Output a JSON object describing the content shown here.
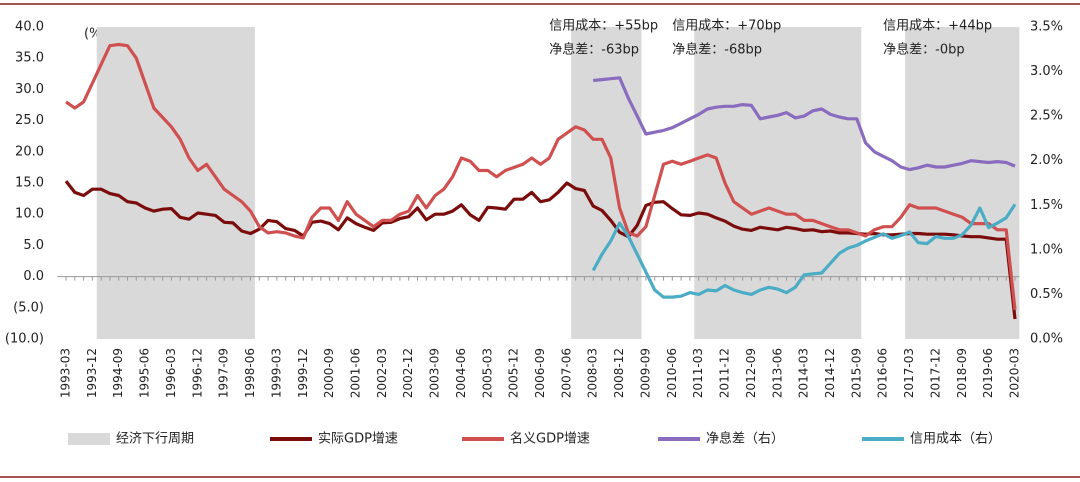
{
  "chart_data": {
    "type": "line",
    "y_unit_label": "(%)",
    "categories": [
      "1993-03",
      null,
      null,
      "1993-12",
      null,
      null,
      "1994-09",
      null,
      null,
      "1995-06",
      null,
      null,
      "1996-03",
      null,
      null,
      "1996-12",
      null,
      null,
      "1997-09",
      null,
      null,
      "1998-06",
      null,
      null,
      "1999-03",
      null,
      null,
      "1999-12",
      null,
      null,
      "2000-09",
      null,
      null,
      "2001-06",
      null,
      null,
      "2002-03",
      null,
      null,
      "2002-12",
      null,
      null,
      "2003-09",
      null,
      null,
      "2004-06",
      null,
      null,
      "2005-03",
      null,
      null,
      "2005-12",
      null,
      null,
      "2006-09",
      null,
      null,
      "2007-06",
      null,
      null,
      "2008-03",
      null,
      null,
      "2008-12",
      null,
      null,
      "2009-09",
      null,
      null,
      "2010-06",
      null,
      null,
      "2011-03",
      null,
      null,
      "2011-12",
      null,
      null,
      "2012-09",
      null,
      null,
      "2013-06",
      null,
      null,
      "2014-03",
      null,
      null,
      "2014-12",
      null,
      null,
      "2015-09",
      null,
      null,
      "2016-06",
      null,
      null,
      "2017-03",
      null,
      null,
      "2017-12",
      null,
      null,
      "2018-09",
      null,
      null,
      "2019-06",
      null,
      null,
      "2020-03"
    ],
    "shade": {
      "name": "经济下行周期",
      "color": "#d9d9d9",
      "periods": [
        {
          "start": "1994-03",
          "end": "1998-06"
        },
        {
          "start": "2007-09",
          "end": "2009-06",
          "annotation": [
            "信用成本：+55bp",
            "净息差：-63bp"
          ]
        },
        {
          "start": "2011-03",
          "end": "2015-09",
          "annotation": [
            "信用成本：+70bp",
            "净息差：-68bp"
          ]
        },
        {
          "start": "2017-03",
          "end": "2020-03",
          "annotation": [
            "信用成本：+44bp",
            "净息差：-0bp"
          ]
        }
      ]
    },
    "series": [
      {
        "name": "实际GDP增速",
        "color": "#7b0c0c",
        "values": [
          15.3,
          13.5,
          13.0,
          14.0,
          14.0,
          13.3,
          13.0,
          12.0,
          11.8,
          11.0,
          10.5,
          10.8,
          10.9,
          9.5,
          9.2,
          10.2,
          10.0,
          9.8,
          8.7,
          8.6,
          7.3,
          6.9,
          7.6,
          9.0,
          8.8,
          7.7,
          7.4,
          6.5,
          8.7,
          8.9,
          8.5,
          7.5,
          9.4,
          8.5,
          7.9,
          7.4,
          8.6,
          8.7,
          9.3,
          9.6,
          11.0,
          9.1,
          10.0,
          10.0,
          10.5,
          11.5,
          9.9,
          9.0,
          11.1,
          11.0,
          10.8,
          12.4,
          12.4,
          13.5,
          12.0,
          12.3,
          13.5,
          15.0,
          14.1,
          13.8,
          11.3,
          10.6,
          9.0,
          7.1,
          6.4,
          8.2,
          11.4,
          11.9,
          12.0,
          10.9,
          9.9,
          9.8,
          10.2,
          10.0,
          9.4,
          8.9,
          8.1,
          7.6,
          7.4,
          7.9,
          7.7,
          7.5,
          7.9,
          7.7,
          7.4,
          7.5,
          7.2,
          7.3,
          7.0,
          7.0,
          6.9,
          6.8,
          6.9,
          6.7,
          6.7,
          6.8,
          6.9,
          6.9,
          6.8,
          6.8,
          6.8,
          6.7,
          6.5,
          6.4,
          6.4,
          6.2,
          6.0,
          6.0,
          -6.8
        ]
      },
      {
        "name": "名义GDP增速",
        "color": "#d05050",
        "values": [
          28.0,
          27.0,
          28.0,
          31.0,
          34.0,
          37.0,
          37.2,
          37.0,
          35.0,
          31.0,
          27.0,
          25.5,
          24.0,
          22.0,
          19.0,
          17.0,
          18.0,
          16.0,
          14.0,
          13.0,
          12.0,
          10.5,
          8.0,
          7.0,
          7.2,
          7.0,
          6.5,
          6.2,
          9.5,
          11.0,
          11.0,
          9.0,
          12.0,
          10.0,
          9.0,
          8.0,
          9.0,
          9.0,
          10.0,
          10.5,
          13.0,
          11.0,
          13.0,
          14.0,
          16.0,
          19.0,
          18.5,
          17.0,
          17.0,
          16.0,
          17.0,
          17.5,
          18.0,
          19.0,
          18.0,
          19.0,
          22.0,
          23.0,
          24.0,
          23.5,
          22.0,
          22.0,
          19.0,
          11.0,
          7.0,
          6.5,
          8.0,
          13.0,
          18.0,
          18.5,
          18.0,
          18.5,
          19.0,
          19.5,
          19.0,
          15.0,
          12.0,
          11.0,
          10.0,
          10.5,
          11.0,
          10.5,
          10.0,
          10.0,
          9.0,
          9.0,
          8.5,
          8.0,
          7.5,
          7.5,
          7.0,
          6.5,
          7.5,
          8.0,
          8.0,
          9.5,
          11.5,
          11.0,
          11.0,
          11.0,
          10.5,
          10.0,
          9.5,
          8.5,
          8.5,
          8.5,
          7.5,
          7.5,
          -5.3
        ]
      },
      {
        "name": "净息差（右）",
        "color": "#8a6cbf",
        "axis": "y2",
        "values": [
          null,
          null,
          null,
          null,
          null,
          null,
          null,
          null,
          null,
          null,
          null,
          null,
          null,
          null,
          null,
          null,
          null,
          null,
          null,
          null,
          null,
          null,
          null,
          null,
          null,
          null,
          null,
          null,
          null,
          null,
          null,
          null,
          null,
          null,
          null,
          null,
          null,
          null,
          null,
          null,
          null,
          null,
          null,
          null,
          null,
          null,
          null,
          null,
          null,
          null,
          null,
          null,
          null,
          null,
          null,
          null,
          null,
          null,
          null,
          null,
          2.9,
          2.91,
          2.92,
          2.93,
          2.7,
          2.5,
          2.3,
          2.32,
          2.34,
          2.37,
          2.42,
          2.47,
          2.52,
          2.58,
          2.6,
          2.61,
          2.61,
          2.63,
          2.62,
          2.47,
          2.49,
          2.51,
          2.54,
          2.48,
          2.5,
          2.56,
          2.58,
          2.52,
          2.49,
          2.47,
          2.47,
          2.2,
          2.1,
          2.05,
          2.0,
          1.93,
          1.9,
          1.92,
          1.95,
          1.93,
          1.93,
          1.95,
          1.97,
          2.0,
          1.99,
          1.98,
          1.99,
          1.98,
          1.94
        ]
      },
      {
        "name": "信用成本（右）",
        "color": "#4bacc6",
        "axis": "y2",
        "values": [
          null,
          null,
          null,
          null,
          null,
          null,
          null,
          null,
          null,
          null,
          null,
          null,
          null,
          null,
          null,
          null,
          null,
          null,
          null,
          null,
          null,
          null,
          null,
          null,
          null,
          null,
          null,
          null,
          null,
          null,
          null,
          null,
          null,
          null,
          null,
          null,
          null,
          null,
          null,
          null,
          null,
          null,
          null,
          null,
          null,
          null,
          null,
          null,
          null,
          null,
          null,
          null,
          null,
          null,
          null,
          null,
          null,
          null,
          null,
          null,
          0.77,
          0.95,
          1.1,
          1.3,
          1.15,
          0.95,
          0.75,
          0.55,
          0.47,
          0.47,
          0.48,
          0.52,
          0.5,
          0.55,
          0.54,
          0.6,
          0.55,
          0.52,
          0.5,
          0.55,
          0.58,
          0.56,
          0.52,
          0.58,
          0.72,
          0.73,
          0.74,
          0.85,
          0.96,
          1.02,
          1.05,
          1.1,
          1.14,
          1.18,
          1.13,
          1.16,
          1.2,
          1.08,
          1.07,
          1.15,
          1.13,
          1.13,
          1.17,
          1.28,
          1.47,
          1.25,
          1.3,
          1.36,
          1.51
        ]
      }
    ],
    "ylim": [
      -10,
      40
    ],
    "yticks": [
      {
        "value": -10,
        "label": "(10.0)"
      },
      {
        "value": -5,
        "label": "(5.0)"
      },
      {
        "value": 0,
        "label": "0.0"
      },
      {
        "value": 5,
        "label": "5.0"
      },
      {
        "value": 10,
        "label": "10.0"
      },
      {
        "value": 15,
        "label": "15.0"
      },
      {
        "value": 20,
        "label": "20.0"
      },
      {
        "value": 25,
        "label": "25.0"
      },
      {
        "value": 30,
        "label": "30.0"
      },
      {
        "value": 35,
        "label": "35.0"
      },
      {
        "value": 40,
        "label": "40.0"
      }
    ],
    "y2lim": [
      0,
      3.5
    ],
    "y2ticks": [
      {
        "value": 0,
        "label": "0.0%"
      },
      {
        "value": 0.5,
        "label": "0.5%"
      },
      {
        "value": 1,
        "label": "1.0%"
      },
      {
        "value": 1.5,
        "label": "1.5%"
      },
      {
        "value": 2,
        "label": "2.0%"
      },
      {
        "value": 2.5,
        "label": "2.5%"
      },
      {
        "value": 3,
        "label": "3.0%"
      },
      {
        "value": 3.5,
        "label": "3.5%"
      }
    ],
    "negative_tick_color": "#e03030"
  }
}
